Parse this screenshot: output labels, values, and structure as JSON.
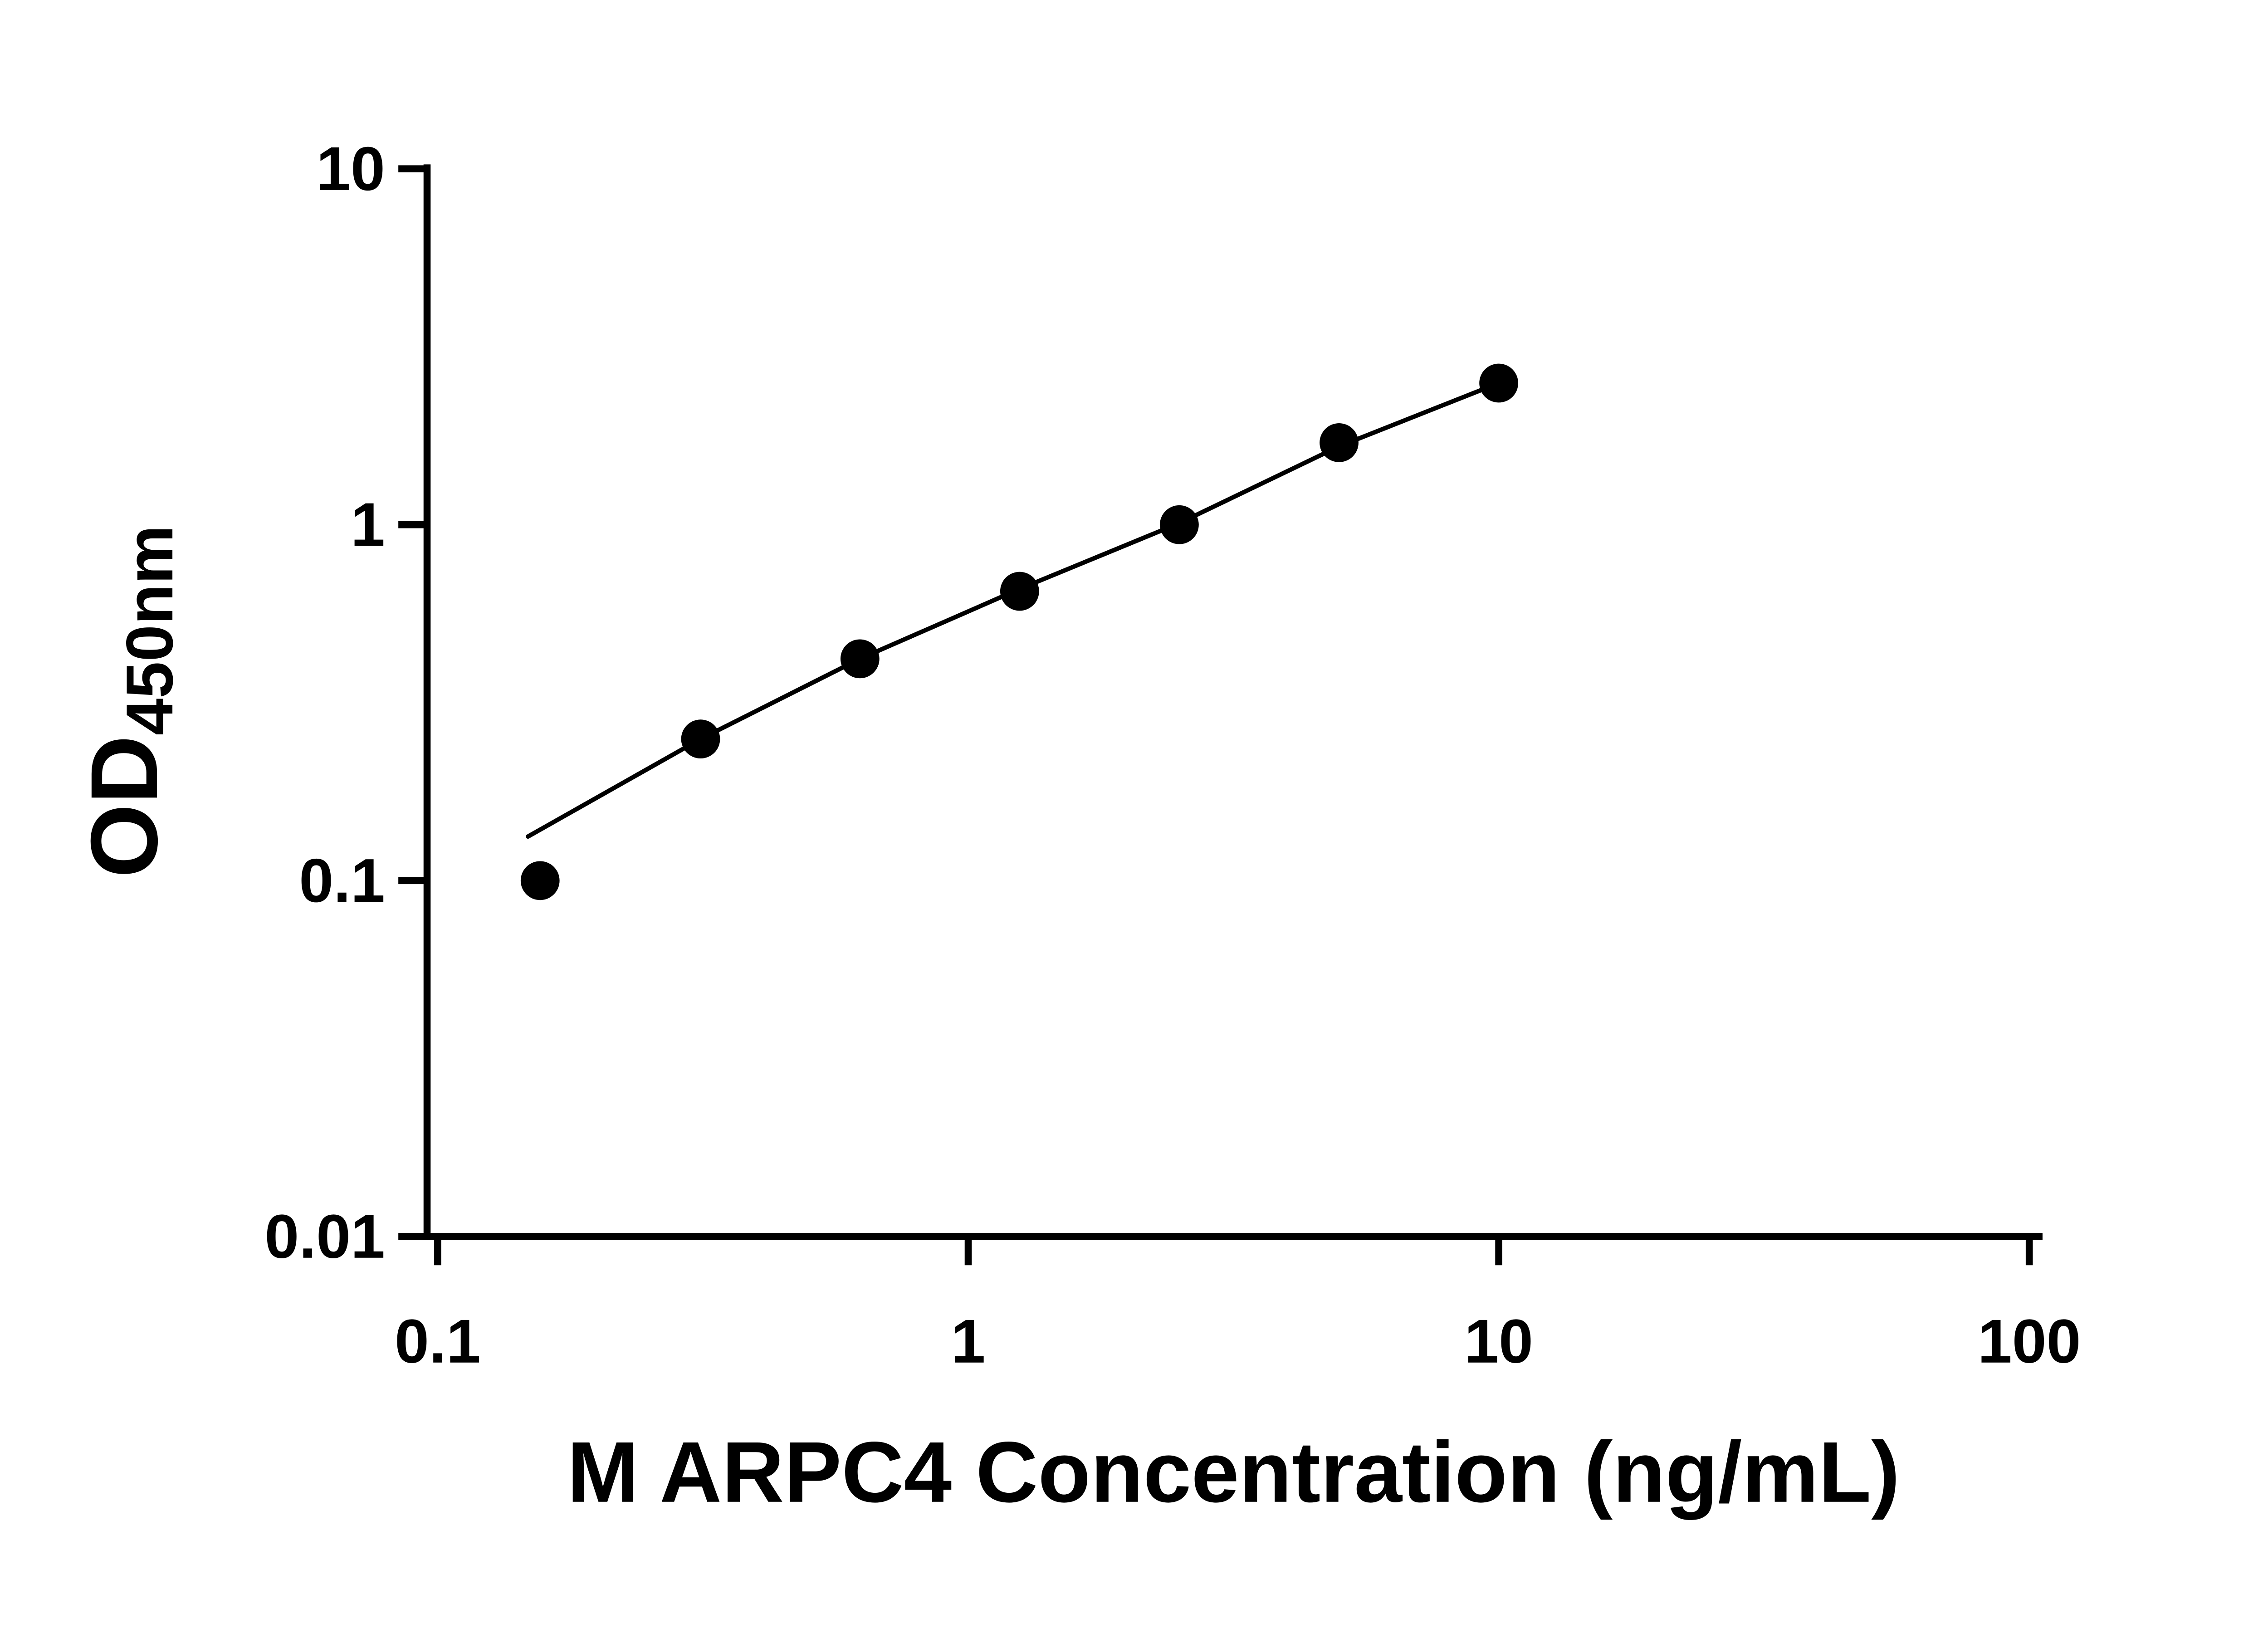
{
  "chart_data": {
    "type": "scatter",
    "title": "",
    "xlabel": "M ARPC4 Concentration (ng/mL)",
    "ylabel": {
      "main": "OD",
      "sub": "450nm"
    },
    "x_scale": "log",
    "y_scale": "log",
    "xlim": [
      0.1,
      100
    ],
    "ylim": [
      0.01,
      10
    ],
    "x_ticks": [
      0.1,
      1,
      10,
      100
    ],
    "x_tick_labels": [
      "0.1",
      "1",
      "10",
      "100"
    ],
    "y_ticks": [
      0.01,
      0.1,
      1,
      10
    ],
    "y_tick_labels": [
      "0.01",
      "0.1",
      "1",
      "10"
    ],
    "grid": false,
    "legend": null,
    "points": [
      {
        "x": 0.156,
        "y": 0.1
      },
      {
        "x": 0.313,
        "y": 0.25
      },
      {
        "x": 0.625,
        "y": 0.42
      },
      {
        "x": 1.25,
        "y": 0.65
      },
      {
        "x": 2.5,
        "y": 1.0
      },
      {
        "x": 5,
        "y": 1.7
      },
      {
        "x": 10,
        "y": 2.5
      }
    ],
    "fit_line": [
      {
        "x": 0.148,
        "y": 0.133
      },
      {
        "x": 0.313,
        "y": 0.25
      },
      {
        "x": 0.625,
        "y": 0.42
      },
      {
        "x": 1.25,
        "y": 0.66
      },
      {
        "x": 2.5,
        "y": 1.01
      },
      {
        "x": 5,
        "y": 1.66
      },
      {
        "x": 10,
        "y": 2.5
      }
    ],
    "colors": {
      "points": "#000000",
      "line": "#000000",
      "axis": "#000000",
      "background": "#ffffff"
    }
  }
}
